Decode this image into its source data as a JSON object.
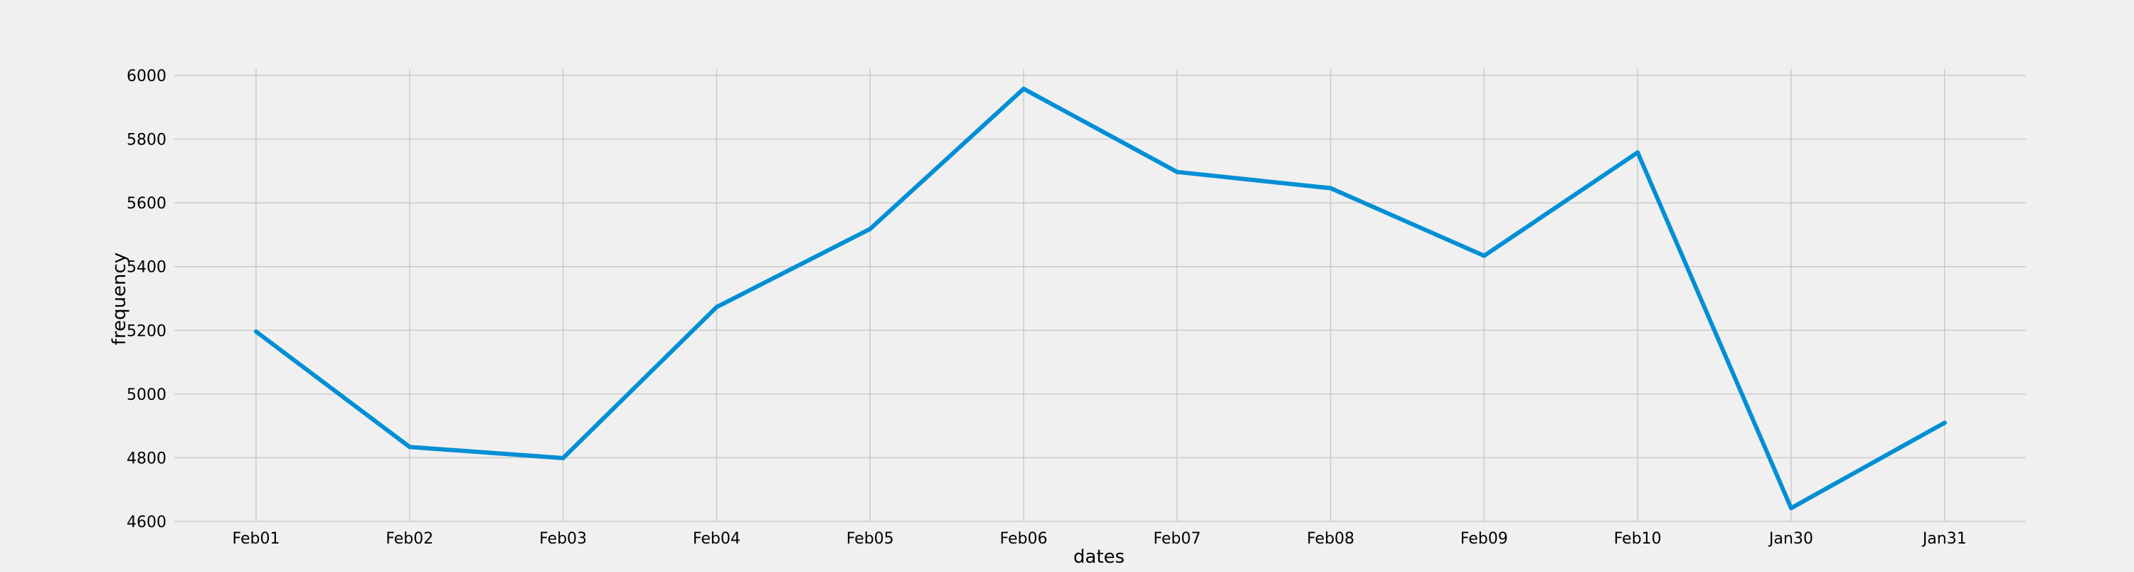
{
  "chart_data": {
    "type": "line",
    "title": "",
    "xlabel": "dates",
    "ylabel": "frequency",
    "categories": [
      "Feb01",
      "Feb02",
      "Feb03",
      "Feb04",
      "Feb05",
      "Feb06",
      "Feb07",
      "Feb08",
      "Feb09",
      "Feb10",
      "Jan30",
      "Jan31"
    ],
    "series": [
      {
        "values": [
          5196,
          4834,
          4799,
          5273,
          5518,
          5958,
          5697,
          5646,
          5434,
          5758,
          4642,
          4910
        ]
      }
    ],
    "ylim": [
      4600,
      6020
    ],
    "yticks": [
      4600,
      4800,
      5000,
      5200,
      5400,
      5600,
      5800,
      6000
    ],
    "grid": true,
    "colors": {
      "line": "#008fd5",
      "grid": "#cbcbcb",
      "background": "#f0f0f0"
    }
  }
}
